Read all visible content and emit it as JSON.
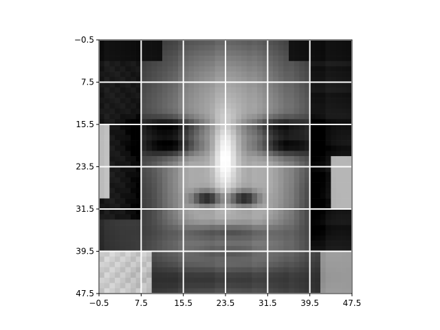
{
  "chart_data": {
    "type": "heatmap",
    "title": "",
    "xlabel": "",
    "ylabel": "",
    "colormap": "gray",
    "image_size": [
      48,
      48
    ],
    "xlim": [
      -0.5,
      47.5
    ],
    "ylim": [
      47.5,
      -0.5
    ],
    "x_ticks": [
      -0.5,
      7.5,
      15.5,
      23.5,
      31.5,
      39.5,
      47.5
    ],
    "x_tick_labels": [
      "−0.5",
      "7.5",
      "15.5",
      "23.5",
      "31.5",
      "39.5",
      "47.5"
    ],
    "y_ticks": [
      -0.5,
      7.5,
      15.5,
      23.5,
      31.5,
      39.5,
      47.5
    ],
    "y_tick_labels": [
      "−0.5",
      "7.5",
      "15.5",
      "23.5",
      "31.5",
      "39.5",
      "47.5"
    ],
    "grid": true,
    "grid_color": "#ffffff",
    "image_description": "grayscale 48x48 face image"
  }
}
